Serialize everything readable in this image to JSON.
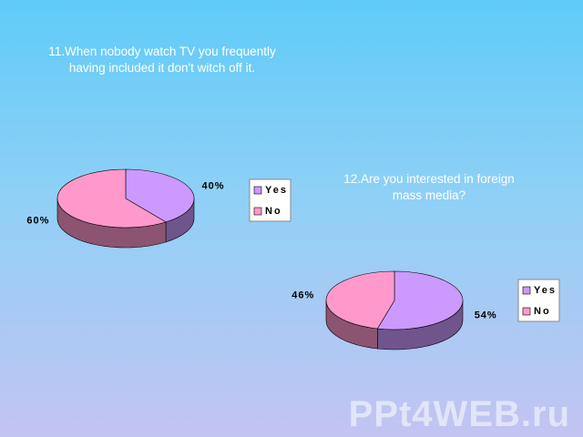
{
  "chart_data": [
    {
      "type": "pie3d",
      "title": "11.When nobody watch TV you frequently having included it don't witch off it.",
      "categories": [
        "Yes",
        "No"
      ],
      "values": [
        40,
        60
      ],
      "value_labels": [
        "40%",
        "60%"
      ],
      "colors": [
        "#cc99ff",
        "#ff99cc"
      ],
      "legend": "right"
    },
    {
      "type": "pie3d",
      "title": "12.Are you interested in foreign mass media?",
      "categories": [
        "Yes",
        "No"
      ],
      "values": [
        54,
        46
      ],
      "value_labels": [
        "54%",
        "46%"
      ],
      "colors": [
        "#cc99ff",
        "#ff99cc"
      ],
      "legend": "right"
    }
  ],
  "watermark": "PPt4WEB.ru"
}
